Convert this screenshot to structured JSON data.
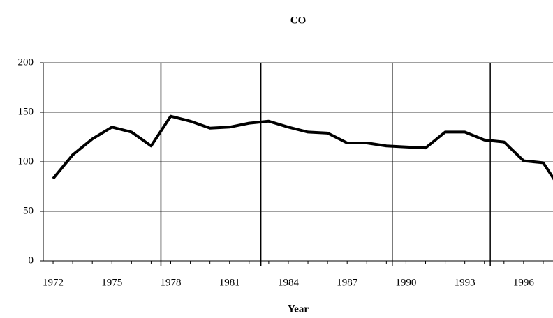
{
  "chart_data": {
    "type": "line",
    "title": "CO",
    "x_label": "Year",
    "x": [
      1972,
      1973,
      1974,
      1975,
      1976,
      1977,
      1978,
      1979,
      1980,
      1981,
      1982,
      1983,
      1984,
      1985,
      1986,
      1987,
      1988,
      1989,
      1990,
      1991,
      1992,
      1993,
      1994,
      1995,
      1996,
      1997,
      1998
    ],
    "series": [
      {
        "name": "CO",
        "color": "#000000",
        "values": [
          83,
          107,
          123,
          135,
          130,
          116,
          146,
          141,
          134,
          135,
          139,
          141,
          135,
          130,
          129,
          119,
          119,
          116,
          115,
          114,
          130,
          130,
          122,
          120,
          101,
          99,
          69
        ]
      }
    ],
    "xlim": [
      1971.5,
      1997.5
    ],
    "ylim": [
      0,
      200
    ],
    "xticks": [
      1972,
      1975,
      1978,
      1981,
      1984,
      1987,
      1990,
      1993,
      1996
    ],
    "x_minor_ticks": [
      1972,
      1973,
      1974,
      1975,
      1976,
      1977,
      1978,
      1979,
      1980,
      1981,
      1982,
      1983,
      1984,
      1985,
      1986,
      1987,
      1988,
      1989,
      1990,
      1991,
      1992,
      1993,
      1994,
      1995,
      1996,
      1997
    ],
    "yticks": [
      0,
      50,
      100,
      150,
      200
    ],
    "vlines": [
      1977.5,
      1982.6,
      1989.3,
      1994.3
    ],
    "grid": true
  }
}
